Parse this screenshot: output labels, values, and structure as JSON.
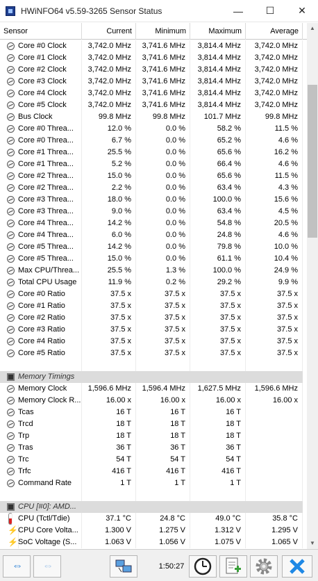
{
  "window": {
    "title": "HWiNFO64 v5.59-3265 Sensor Status",
    "minimize": "—",
    "maximize": "☐",
    "close": "✕"
  },
  "columns": {
    "sensor": "Sensor",
    "current": "Current",
    "minimum": "Minimum",
    "maximum": "Maximum",
    "average": "Average"
  },
  "rows": [
    {
      "name": "Core #0 Clock",
      "current": "3,742.0 MHz",
      "min": "3,741.6 MHz",
      "max": "3,814.4 MHz",
      "avg": "3,742.0 MHz"
    },
    {
      "name": "Core #1 Clock",
      "current": "3,742.0 MHz",
      "min": "3,741.6 MHz",
      "max": "3,814.4 MHz",
      "avg": "3,742.0 MHz"
    },
    {
      "name": "Core #2 Clock",
      "current": "3,742.0 MHz",
      "min": "3,741.6 MHz",
      "max": "3,814.4 MHz",
      "avg": "3,742.0 MHz"
    },
    {
      "name": "Core #3 Clock",
      "current": "3,742.0 MHz",
      "min": "3,741.6 MHz",
      "max": "3,814.4 MHz",
      "avg": "3,742.0 MHz"
    },
    {
      "name": "Core #4 Clock",
      "current": "3,742.0 MHz",
      "min": "3,741.6 MHz",
      "max": "3,814.4 MHz",
      "avg": "3,742.0 MHz"
    },
    {
      "name": "Core #5 Clock",
      "current": "3,742.0 MHz",
      "min": "3,741.6 MHz",
      "max": "3,814.4 MHz",
      "avg": "3,742.0 MHz"
    },
    {
      "name": "Bus Clock",
      "current": "99.8 MHz",
      "min": "99.8 MHz",
      "max": "101.7 MHz",
      "avg": "99.8 MHz"
    },
    {
      "name": "Core #0 Threa...",
      "current": "12.0 %",
      "min": "0.0 %",
      "max": "58.2 %",
      "avg": "11.5 %"
    },
    {
      "name": "Core #0 Threa...",
      "current": "6.7 %",
      "min": "0.0 %",
      "max": "65.2 %",
      "avg": "4.6 %"
    },
    {
      "name": "Core #1 Threa...",
      "current": "25.5 %",
      "min": "0.0 %",
      "max": "65.6 %",
      "avg": "16.2 %"
    },
    {
      "name": "Core #1 Threa...",
      "current": "5.2 %",
      "min": "0.0 %",
      "max": "66.4 %",
      "avg": "4.6 %"
    },
    {
      "name": "Core #2 Threa...",
      "current": "15.0 %",
      "min": "0.0 %",
      "max": "65.6 %",
      "avg": "11.5 %"
    },
    {
      "name": "Core #2 Threa...",
      "current": "2.2 %",
      "min": "0.0 %",
      "max": "63.4 %",
      "avg": "4.3 %"
    },
    {
      "name": "Core #3 Threa...",
      "current": "18.0 %",
      "min": "0.0 %",
      "max": "100.0 %",
      "avg": "15.6 %"
    },
    {
      "name": "Core #3 Threa...",
      "current": "9.0 %",
      "min": "0.0 %",
      "max": "63.4 %",
      "avg": "4.5 %"
    },
    {
      "name": "Core #4 Threa...",
      "current": "14.2 %",
      "min": "0.0 %",
      "max": "54.8 %",
      "avg": "20.5 %"
    },
    {
      "name": "Core #4 Threa...",
      "current": "6.0 %",
      "min": "0.0 %",
      "max": "24.8 %",
      "avg": "4.6 %"
    },
    {
      "name": "Core #5 Threa...",
      "current": "14.2 %",
      "min": "0.0 %",
      "max": "79.8 %",
      "avg": "10.0 %"
    },
    {
      "name": "Core #5 Threa...",
      "current": "15.0 %",
      "min": "0.0 %",
      "max": "61.1 %",
      "avg": "10.4 %"
    },
    {
      "name": "Max CPU/Threa...",
      "current": "25.5 %",
      "min": "1.3 %",
      "max": "100.0 %",
      "avg": "24.9 %"
    },
    {
      "name": "Total CPU Usage",
      "current": "11.9 %",
      "min": "0.2 %",
      "max": "29.2 %",
      "avg": "9.9 %"
    },
    {
      "name": "Core #0 Ratio",
      "current": "37.5 x",
      "min": "37.5 x",
      "max": "37.5 x",
      "avg": "37.5 x"
    },
    {
      "name": "Core #1 Ratio",
      "current": "37.5 x",
      "min": "37.5 x",
      "max": "37.5 x",
      "avg": "37.5 x"
    },
    {
      "name": "Core #2 Ratio",
      "current": "37.5 x",
      "min": "37.5 x",
      "max": "37.5 x",
      "avg": "37.5 x"
    },
    {
      "name": "Core #3 Ratio",
      "current": "37.5 x",
      "min": "37.5 x",
      "max": "37.5 x",
      "avg": "37.5 x"
    },
    {
      "name": "Core #4 Ratio",
      "current": "37.5 x",
      "min": "37.5 x",
      "max": "37.5 x",
      "avg": "37.5 x"
    },
    {
      "name": "Core #5 Ratio",
      "current": "37.5 x",
      "min": "37.5 x",
      "max": "37.5 x",
      "avg": "37.5 x"
    }
  ],
  "memory_group": "Memory Timings",
  "memory_rows": [
    {
      "name": "Memory Clock",
      "current": "1,596.6 MHz",
      "min": "1,596.4 MHz",
      "max": "1,627.5 MHz",
      "avg": "1,596.6 MHz"
    },
    {
      "name": "Memory Clock R...",
      "current": "16.00 x",
      "min": "16.00 x",
      "max": "16.00 x",
      "avg": "16.00 x"
    },
    {
      "name": "Tcas",
      "current": "16 T",
      "min": "16 T",
      "max": "16 T",
      "avg": ""
    },
    {
      "name": "Trcd",
      "current": "18 T",
      "min": "18 T",
      "max": "18 T",
      "avg": ""
    },
    {
      "name": "Trp",
      "current": "18 T",
      "min": "18 T",
      "max": "18 T",
      "avg": ""
    },
    {
      "name": "Tras",
      "current": "36 T",
      "min": "36 T",
      "max": "36 T",
      "avg": ""
    },
    {
      "name": "Trc",
      "current": "54 T",
      "min": "54 T",
      "max": "54 T",
      "avg": ""
    },
    {
      "name": "Trfc",
      "current": "416 T",
      "min": "416 T",
      "max": "416 T",
      "avg": ""
    },
    {
      "name": "Command Rate",
      "current": "1 T",
      "min": "1 T",
      "max": "1 T",
      "avg": ""
    }
  ],
  "cpu_group": "CPU [#0]: AMD...",
  "cpu_rows": [
    {
      "name": "CPU (Tctl/Tdie)",
      "current": "37.1 °C",
      "min": "24.8 °C",
      "max": "49.0 °C",
      "avg": "35.8 °C",
      "icon": "thermometer-icon"
    },
    {
      "name": "CPU Core Volta...",
      "current": "1.300 V",
      "min": "1.275 V",
      "max": "1.312 V",
      "avg": "1.295 V",
      "icon": "voltage-icon"
    },
    {
      "name": "SoC Voltage (S...",
      "current": "1.063 V",
      "min": "1.056 V",
      "max": "1.075 V",
      "avg": "1.065 V",
      "icon": "voltage-icon"
    }
  ],
  "toolbar": {
    "elapsed_time": "1:50:27"
  },
  "colors": {
    "group_bg": "#dcdcdc",
    "close_blue": "#1e88e5",
    "arrow_blue": "#2a7fd4"
  }
}
